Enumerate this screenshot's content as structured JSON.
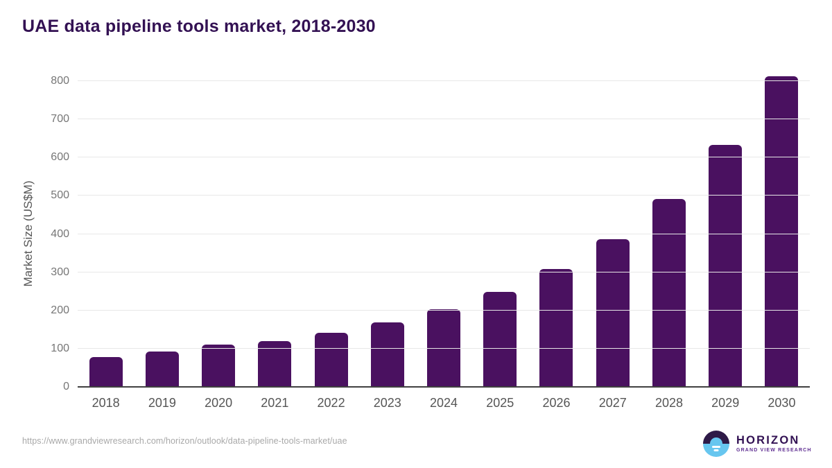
{
  "title": "UAE data pipeline tools market, 2018-2030",
  "chart_data": {
    "type": "bar",
    "title": "UAE data pipeline tools market, 2018-2030",
    "categories": [
      "2018",
      "2019",
      "2020",
      "2021",
      "2022",
      "2023",
      "2024",
      "2025",
      "2026",
      "2027",
      "2028",
      "2029",
      "2030"
    ],
    "values": [
      78,
      92,
      110,
      120,
      142,
      168,
      204,
      248,
      309,
      387,
      492,
      634,
      812
    ],
    "xlabel": "",
    "ylabel": "Market Size (US$M)",
    "ylim": [
      0,
      800
    ],
    "yticks": [
      0,
      100,
      200,
      300,
      400,
      500,
      600,
      700,
      800
    ],
    "grid": true,
    "legend": false,
    "bar_color": "#4A1160"
  },
  "footer": {
    "source_url": "https://www.grandviewresearch.com/horizon/outlook/data-pipeline-tools-market/uae",
    "logo": {
      "brand": "HORIZON",
      "tagline": "GRAND VIEW RESEARCH"
    }
  },
  "colors": {
    "bar": "#4A1160",
    "title": "#331153",
    "axis_line": "#404040",
    "gridline": "#E7E7E7",
    "y_tick": "#767676",
    "x_tick": "#555555",
    "y_axis_title": "#565656",
    "source_url": "#A8A8A8",
    "logo_dark": "#2E1A47",
    "logo_blue": "#67C6EF",
    "logo_brand": "#321153",
    "logo_tagline": "#5E2D91"
  }
}
